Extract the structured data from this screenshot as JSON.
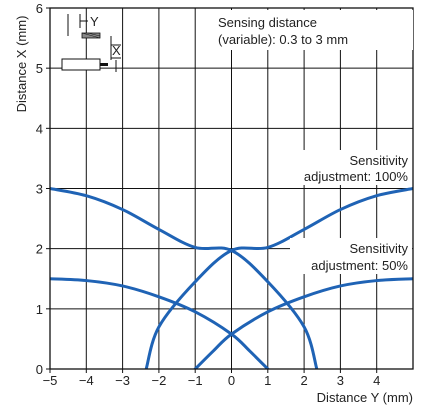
{
  "chart_data": {
    "type": "line",
    "xlabel": "Distance Y (mm)",
    "ylabel": "Distance X (mm)",
    "xlim": [
      -5,
      5
    ],
    "ylim": [
      0,
      6
    ],
    "xticks": [
      -5,
      -4,
      -3,
      -2,
      -1,
      0,
      1,
      2,
      3,
      4
    ],
    "yticks": [
      0,
      1,
      2,
      3,
      4,
      5,
      6
    ],
    "grid": true,
    "line_color": "#1f63b5",
    "annotations": [
      {
        "text": "Sensing distance",
        "anchor": "top-right"
      },
      {
        "text": "(variable): 0.3 to 3 mm",
        "anchor": "top-right"
      },
      {
        "text": "Sensitivity",
        "anchor": "right"
      },
      {
        "text": "adjustment: 100%",
        "anchor": "right"
      },
      {
        "text": "Sensitivity",
        "anchor": "right"
      },
      {
        "text": "adjustment: 50%",
        "anchor": "right"
      }
    ],
    "inset": {
      "icon": "sensor-diagram-icon",
      "label_y": "Y",
      "label_x": "X"
    },
    "series": [
      {
        "group": "sensitivity-100-left",
        "x": [
          -5,
          -4,
          -3,
          -2,
          -1,
          0,
          1,
          2,
          2.35
        ],
        "y": [
          3.0,
          2.88,
          2.65,
          2.32,
          2.02,
          1.97,
          1.45,
          0.7,
          0
        ]
      },
      {
        "group": "sensitivity-100-right",
        "x": [
          -2.35,
          -2,
          -1,
          0,
          1,
          2,
          3,
          4,
          5
        ],
        "y": [
          0,
          0.7,
          1.45,
          1.97,
          2.02,
          2.32,
          2.65,
          2.88,
          3.0
        ]
      },
      {
        "group": "sensitivity-50-left",
        "x": [
          -5,
          -4,
          -3,
          -2,
          -1,
          0,
          0.5,
          1
        ],
        "y": [
          1.5,
          1.47,
          1.38,
          1.2,
          0.95,
          0.58,
          0.3,
          0
        ]
      },
      {
        "group": "sensitivity-50-right",
        "x": [
          -1,
          -0.5,
          0,
          1,
          2,
          3,
          4,
          5
        ],
        "y": [
          0,
          0.3,
          0.58,
          0.95,
          1.2,
          1.38,
          1.47,
          1.5
        ]
      }
    ]
  }
}
